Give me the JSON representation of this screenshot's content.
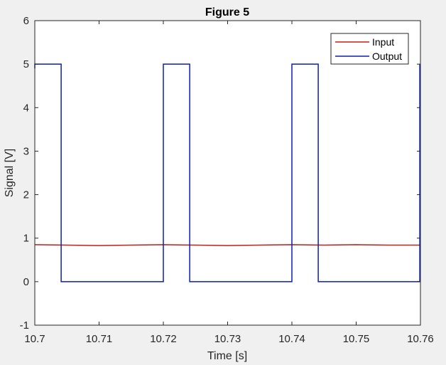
{
  "chart_data": {
    "type": "line",
    "title": "Figure 5",
    "xlabel": "Time [s]",
    "ylabel": "Signal [V]",
    "xlim": [
      10.7,
      10.76
    ],
    "ylim": [
      -1,
      6
    ],
    "xticks": [
      10.7,
      10.71,
      10.72,
      10.73,
      10.74,
      10.75,
      10.76
    ],
    "xtick_labels": [
      "10.7",
      "10.71",
      "10.72",
      "10.73",
      "10.74",
      "10.75",
      "10.76"
    ],
    "yticks": [
      -1,
      0,
      1,
      2,
      3,
      4,
      5,
      6
    ],
    "ytick_labels": [
      "-1",
      "0",
      "1",
      "2",
      "3",
      "4",
      "5",
      "6"
    ],
    "grid": false,
    "legend_position": "top-right",
    "series": [
      {
        "name": "Input",
        "color": "#c0201a",
        "x": [
          10.7,
          10.705,
          10.71,
          10.715,
          10.72,
          10.725,
          10.73,
          10.735,
          10.74,
          10.745,
          10.75,
          10.755,
          10.76
        ],
        "y": [
          0.85,
          0.84,
          0.83,
          0.84,
          0.85,
          0.84,
          0.83,
          0.84,
          0.85,
          0.84,
          0.85,
          0.84,
          0.84
        ]
      },
      {
        "name": "Output",
        "color": "#0a1fb4",
        "x": [
          10.7,
          10.7,
          10.7041,
          10.7041,
          10.72,
          10.72,
          10.7241,
          10.7241,
          10.74,
          10.74,
          10.7441,
          10.7441,
          10.7599,
          10.7599
        ],
        "y": [
          4.9,
          5,
          5,
          0,
          0,
          5,
          5,
          0,
          0,
          5,
          5,
          0,
          0,
          5
        ]
      }
    ]
  }
}
